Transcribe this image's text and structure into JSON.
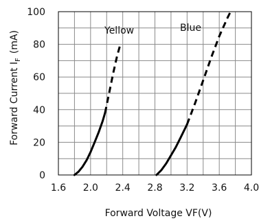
{
  "chart_data": {
    "type": "line",
    "xlabel": "Forward Voltage VF(V)",
    "ylabel_main": "Forward Current I",
    "ylabel_subscript": "F",
    "ylabel_unit": "(mA)",
    "xlim": [
      1.6,
      4.0
    ],
    "ylim": [
      0,
      100
    ],
    "xticks": [
      "1.6",
      "2.0",
      "2.4",
      "2.8",
      "3.2",
      "3.6",
      "4.0"
    ],
    "yticks": [
      "0",
      "20",
      "40",
      "60",
      "80",
      "100"
    ],
    "grid": true,
    "series": [
      {
        "name": "Yellow",
        "color": "#000000",
        "solid": [
          [
            1.8,
            0
          ],
          [
            1.85,
            2
          ],
          [
            1.9,
            5
          ],
          [
            1.95,
            9
          ],
          [
            2.0,
            14
          ],
          [
            2.05,
            20
          ],
          [
            2.1,
            26
          ],
          [
            2.15,
            33
          ],
          [
            2.18,
            38
          ]
        ],
        "dashed": [
          [
            2.18,
            38
          ],
          [
            2.23,
            50
          ],
          [
            2.28,
            62
          ],
          [
            2.33,
            73
          ],
          [
            2.37,
            80
          ]
        ]
      },
      {
        "name": "Blue",
        "color": "#000000",
        "solid": [
          [
            2.82,
            0
          ],
          [
            2.88,
            3
          ],
          [
            2.94,
            7
          ],
          [
            3.0,
            12
          ],
          [
            3.06,
            17
          ],
          [
            3.12,
            23
          ],
          [
            3.18,
            29
          ],
          [
            3.2,
            31
          ]
        ],
        "dashed": [
          [
            3.2,
            31
          ],
          [
            3.3,
            44
          ],
          [
            3.4,
            58
          ],
          [
            3.5,
            72
          ],
          [
            3.6,
            85
          ],
          [
            3.7,
            96
          ],
          [
            3.74,
            100
          ]
        ]
      }
    ]
  }
}
